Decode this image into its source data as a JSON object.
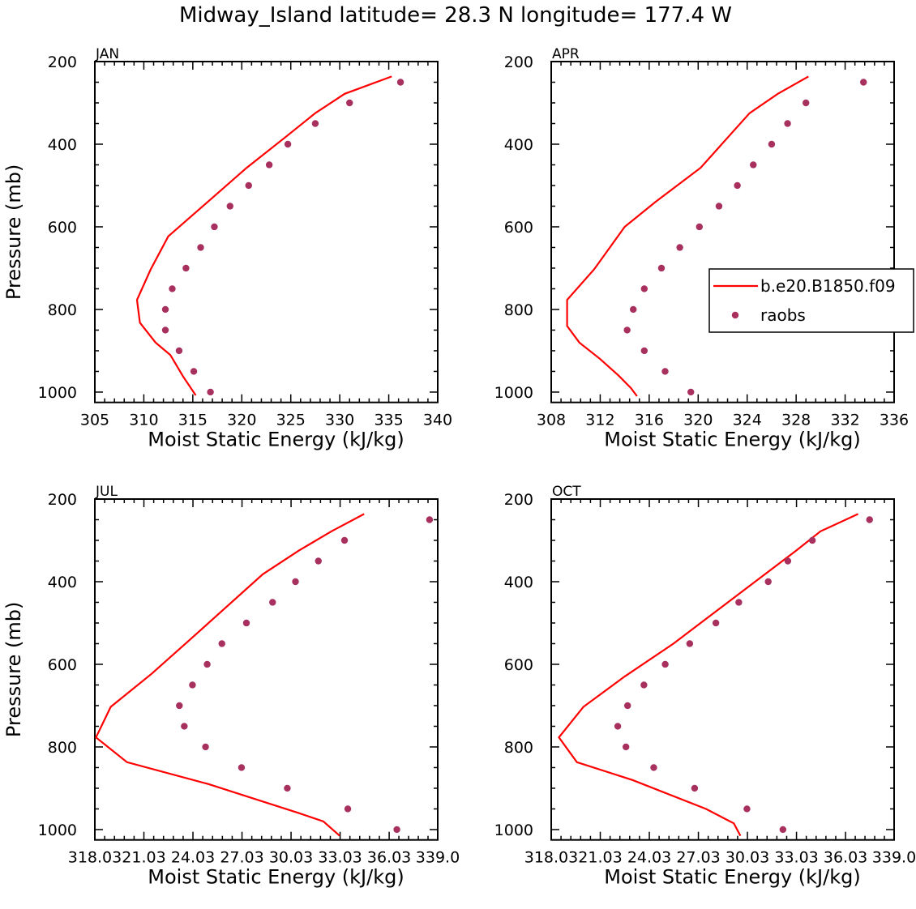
{
  "figure": {
    "title": "Midway_Island  latitude= 28.3 N longitude= 177.4 W"
  },
  "legend": {
    "model_label": "b.e20.B1850.f09",
    "obs_label": "raobs",
    "model_color": "#ff0000",
    "obs_color": "#a8305e"
  },
  "chart_data": [
    {
      "type": "line",
      "panel": "JAN",
      "xlabel": "Moist Static Energy (kJ/kg)",
      "ylabel": "Pressure (mb)",
      "xlim": [
        305,
        340
      ],
      "ylim": [
        200,
        1025
      ],
      "y_inverted": true,
      "xticks": [
        305,
        310,
        315,
        320,
        325,
        330,
        335,
        340
      ],
      "xtick_labels": [
        "305",
        "310",
        "315",
        "320",
        "325",
        "330",
        "335",
        "340"
      ],
      "yticks": [
        200,
        400,
        600,
        800,
        1000
      ],
      "ytick_labels": [
        "200",
        "400",
        "600",
        "800",
        "1000"
      ],
      "series": [
        {
          "name": "b.e20.B1850.f09",
          "kind": "line",
          "x": [
            335.3,
            330.5,
            327.5,
            324.5,
            320.5,
            316.5,
            312.5,
            310.7,
            309.3,
            309.6,
            311.2,
            312.7,
            314.0,
            315.3
          ],
          "y": [
            236,
            278,
            325,
            382,
            457,
            540,
            623,
            703,
            777,
            832,
            880,
            910,
            962,
            1008
          ]
        },
        {
          "name": "raobs",
          "kind": "points",
          "x": [
            336.2,
            331.0,
            327.5,
            324.7,
            322.8,
            320.7,
            318.8,
            317.2,
            315.8,
            314.3,
            312.9,
            312.2,
            312.2,
            313.6,
            315.1,
            316.8
          ],
          "y": [
            250,
            300,
            350,
            400,
            450,
            500,
            550,
            600,
            650,
            700,
            750,
            800,
            850,
            900,
            950,
            1000
          ]
        }
      ]
    },
    {
      "type": "line",
      "panel": "APR",
      "xlabel": "Moist Static Energy (kJ/kg)",
      "ylabel": "",
      "xlim": [
        308,
        336
      ],
      "ylim": [
        200,
        1025
      ],
      "y_inverted": true,
      "xticks": [
        308,
        312,
        316,
        320,
        324,
        328,
        332,
        336
      ],
      "xtick_labels": [
        "308",
        "312",
        "316",
        "320",
        "324",
        "328",
        "332",
        "336"
      ],
      "yticks": [
        200,
        400,
        600,
        800,
        1000
      ],
      "ytick_labels": [
        "200",
        "400",
        "600",
        "800",
        "1000"
      ],
      "series": [
        {
          "name": "b.e20.B1850.f09",
          "kind": "line",
          "x": [
            329.0,
            326.5,
            324.2,
            320.2,
            316.5,
            314.0,
            311.5,
            309.3,
            309.3,
            310.3,
            312.0,
            313.5,
            314.5,
            315.0
          ],
          "y": [
            236,
            278,
            325,
            457,
            540,
            600,
            703,
            777,
            840,
            880,
            920,
            960,
            990,
            1010
          ]
        },
        {
          "name": "raobs",
          "kind": "points",
          "x": [
            333.5,
            328.8,
            327.3,
            326.0,
            324.5,
            323.2,
            321.7,
            320.1,
            318.5,
            317.0,
            315.6,
            314.7,
            314.2,
            315.6,
            317.3,
            319.4
          ],
          "y": [
            250,
            300,
            350,
            400,
            450,
            500,
            550,
            600,
            650,
            700,
            750,
            800,
            850,
            900,
            950,
            1000
          ]
        }
      ]
    },
    {
      "type": "line",
      "panel": "JUL",
      "xlabel": "Moist Static Energy (kJ/kg)",
      "ylabel": "Pressure (mb)",
      "xlim": [
        318.03,
        339.0
      ],
      "ylim": [
        200,
        1025
      ],
      "y_inverted": true,
      "xticks": [
        318.03,
        321.03,
        324.03,
        327.03,
        330.03,
        333.03,
        336.03,
        339.0
      ],
      "xtick_labels": [
        "318.03",
        "21.03",
        "24.03",
        "27.03",
        "30.03",
        "33.03",
        "36.03",
        "339.0"
      ],
      "yticks": [
        200,
        400,
        600,
        800,
        1000
      ],
      "ytick_labels": [
        "200",
        "400",
        "600",
        "800",
        "1000"
      ],
      "series": [
        {
          "name": "b.e20.B1850.f09",
          "kind": "line",
          "x": [
            334.5,
            332.5,
            330.5,
            328.3,
            324.0,
            321.5,
            319.0,
            318.1,
            320.0,
            325.0,
            330.5,
            332.0,
            333.0
          ],
          "y": [
            236,
            278,
            325,
            382,
            535,
            623,
            703,
            777,
            837,
            890,
            960,
            980,
            1015
          ]
        },
        {
          "name": "raobs",
          "kind": "points",
          "x": [
            338.5,
            333.3,
            331.7,
            330.3,
            328.9,
            327.3,
            325.8,
            324.9,
            324.0,
            323.2,
            323.5,
            324.8,
            327.0,
            329.8,
            333.5,
            336.5
          ],
          "y": [
            250,
            300,
            350,
            400,
            450,
            500,
            550,
            600,
            650,
            700,
            750,
            800,
            850,
            900,
            950,
            1000
          ]
        }
      ]
    },
    {
      "type": "line",
      "panel": "OCT",
      "xlabel": "Moist Static Energy (kJ/kg)",
      "ylabel": "",
      "xlim": [
        318.03,
        339.0
      ],
      "ylim": [
        200,
        1025
      ],
      "y_inverted": true,
      "xticks": [
        318.03,
        321.03,
        324.03,
        327.03,
        330.03,
        333.03,
        336.03,
        339.0
      ],
      "xtick_labels": [
        "318.03",
        "21.03",
        "24.03",
        "27.03",
        "30.03",
        "33.03",
        "36.03",
        "339.0"
      ],
      "yticks": [
        200,
        400,
        600,
        800,
        1000
      ],
      "ytick_labels": [
        "200",
        "400",
        "600",
        "800",
        "1000"
      ],
      "series": [
        {
          "name": "b.e20.B1850.f09",
          "kind": "line",
          "x": [
            336.8,
            334.5,
            333.0,
            330.5,
            328.0,
            325.5,
            322.5,
            320.0,
            318.5,
            319.6,
            323.0,
            327.5,
            329.2,
            329.6
          ],
          "y": [
            236,
            278,
            325,
            400,
            475,
            550,
            630,
            703,
            777,
            837,
            880,
            950,
            985,
            1015
          ]
        },
        {
          "name": "raobs",
          "kind": "points",
          "x": [
            337.5,
            334.0,
            332.5,
            331.3,
            329.5,
            328.1,
            326.5,
            325.0,
            323.7,
            322.7,
            322.1,
            322.6,
            324.3,
            326.8,
            330.0,
            332.2
          ],
          "y": [
            250,
            300,
            350,
            400,
            450,
            500,
            550,
            600,
            650,
            700,
            750,
            800,
            850,
            900,
            950,
            1000
          ]
        }
      ]
    }
  ]
}
